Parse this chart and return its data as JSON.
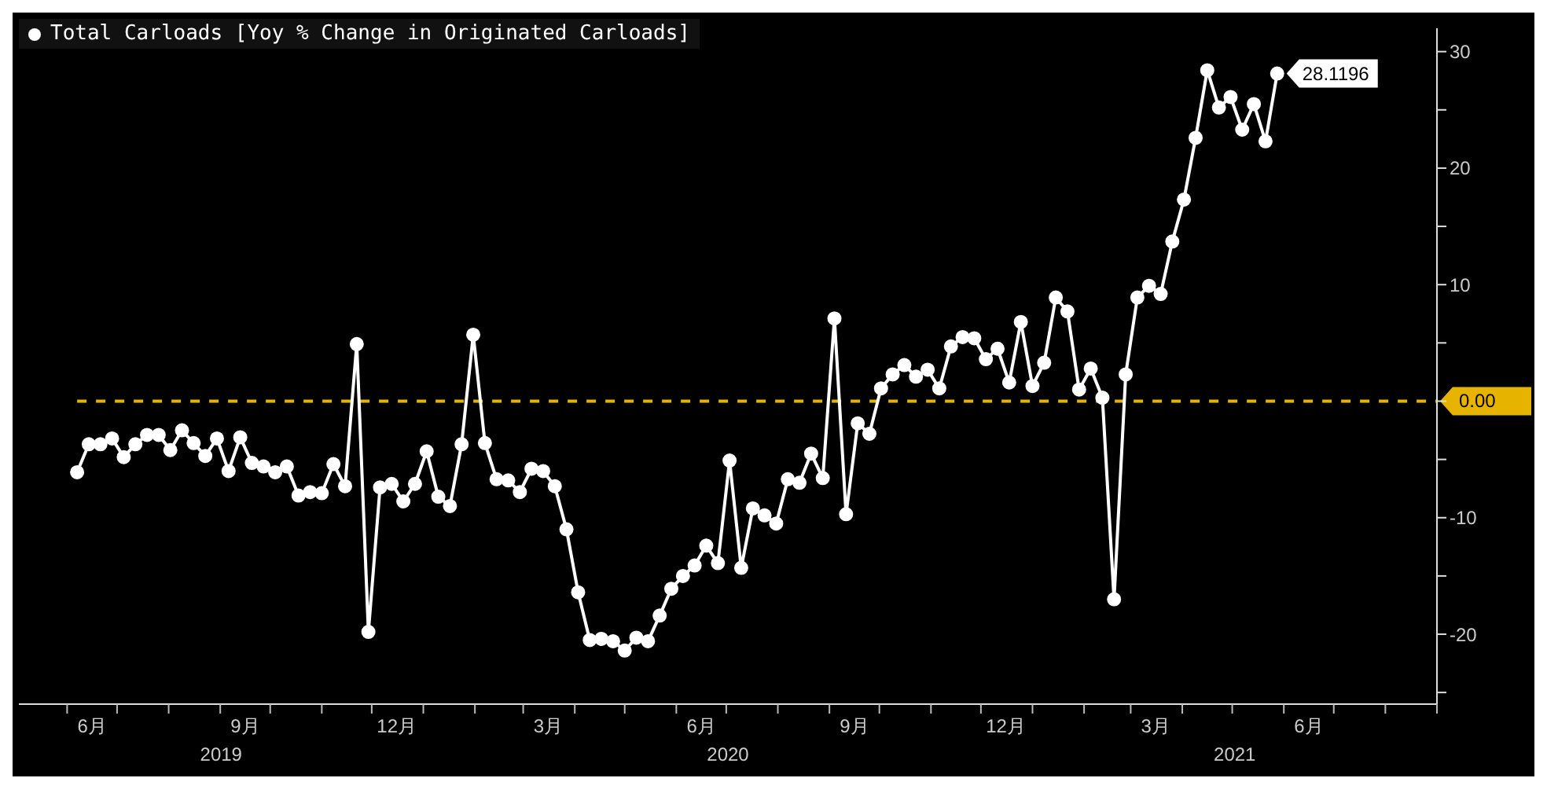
{
  "chart_data": {
    "type": "line",
    "legend": "top left",
    "marker": "circle",
    "line_style": "solid",
    "xlim": [
      "2019-05-03",
      "2021-09-01"
    ],
    "xticks": [
      {
        "value": "2019-06-01",
        "label": null
      },
      {
        "value": "2019-06-16",
        "label": "6月"
      },
      {
        "value": "2019-07-01",
        "label": null
      },
      {
        "value": "2019-08-01",
        "label": null
      },
      {
        "value": "2019-09-01",
        "label": null
      },
      {
        "value": "2019-09-16",
        "label": "9月"
      },
      {
        "value": "2019-10-01",
        "label": null
      },
      {
        "value": "2019-11-01",
        "label": null
      },
      {
        "value": "2019-12-01",
        "label": null
      },
      {
        "value": "2019-12-16",
        "label": "12月"
      },
      {
        "value": "2020-01-01",
        "label": null
      },
      {
        "value": "2020-02-01",
        "label": null
      },
      {
        "value": "2020-03-01",
        "label": null
      },
      {
        "value": "2020-03-16",
        "label": "3月"
      },
      {
        "value": "2020-04-01",
        "label": null
      },
      {
        "value": "2020-05-01",
        "label": null
      },
      {
        "value": "2020-06-01",
        "label": null
      },
      {
        "value": "2020-06-16",
        "label": "6月"
      },
      {
        "value": "2020-07-01",
        "label": null
      },
      {
        "value": "2020-08-01",
        "label": null
      },
      {
        "value": "2020-09-01",
        "label": null
      },
      {
        "value": "2020-09-16",
        "label": "9月"
      },
      {
        "value": "2020-10-01",
        "label": null
      },
      {
        "value": "2020-11-01",
        "label": null
      },
      {
        "value": "2020-12-01",
        "label": null
      },
      {
        "value": "2020-12-16",
        "label": "12月"
      },
      {
        "value": "2021-01-01",
        "label": null
      },
      {
        "value": "2021-02-01",
        "label": null
      },
      {
        "value": "2021-03-01",
        "label": null
      },
      {
        "value": "2021-03-16",
        "label": "3月"
      },
      {
        "value": "2021-04-01",
        "label": null
      },
      {
        "value": "2021-05-01",
        "label": null
      },
      {
        "value": "2021-06-01",
        "label": null
      },
      {
        "value": "2021-06-16",
        "label": "6月"
      },
      {
        "value": "2021-07-01",
        "label": null
      },
      {
        "value": "2021-08-01",
        "label": null
      },
      {
        "value": "2021-09-01",
        "label": null
      }
    ],
    "ylim": [
      -26,
      32
    ],
    "yticks": [
      {
        "value": -25,
        "label": null
      },
      -20,
      {
        "value": -15,
        "label": null
      },
      -10,
      {
        "value": -5,
        "label": null
      },
      {
        "value": 0,
        "label": null
      },
      {
        "value": 5,
        "label": null
      },
      10,
      {
        "value": 15,
        "label": null
      },
      20,
      {
        "value": 25,
        "label": null
      },
      30
    ],
    "ref_lines": [
      {
        "axis": "y",
        "value": 0,
        "label": "0.00",
        "color": "#e6b400",
        "line_style": "dashed"
      }
    ],
    "annotations": [
      "2019",
      "2020",
      "2021"
    ],
    "series": [
      {
        "name": "Total Carloads [Yoy % Change in Originated Carloads]",
        "color": "#ffffff",
        "x": [
          "2019-06-07",
          "2019-06-14",
          "2019-06-21",
          "2019-06-28",
          "2019-07-05",
          "2019-07-12",
          "2019-07-19",
          "2019-07-26",
          "2019-08-02",
          "2019-08-09",
          "2019-08-16",
          "2019-08-23",
          "2019-08-30",
          "2019-09-06",
          "2019-09-13",
          "2019-09-20",
          "2019-09-27",
          "2019-10-04",
          "2019-10-11",
          "2019-10-18",
          "2019-10-25",
          "2019-11-01",
          "2019-11-08",
          "2019-11-15",
          "2019-11-22",
          "2019-11-29",
          "2019-12-06",
          "2019-12-13",
          "2019-12-20",
          "2019-12-27",
          "2020-01-03",
          "2020-01-10",
          "2020-01-17",
          "2020-01-24",
          "2020-01-31",
          "2020-02-07",
          "2020-02-14",
          "2020-02-21",
          "2020-02-28",
          "2020-03-06",
          "2020-03-13",
          "2020-03-20",
          "2020-03-27",
          "2020-04-03",
          "2020-04-10",
          "2020-04-17",
          "2020-04-24",
          "2020-05-01",
          "2020-05-08",
          "2020-05-15",
          "2020-05-22",
          "2020-05-29",
          "2020-06-05",
          "2020-06-12",
          "2020-06-19",
          "2020-06-26",
          "2020-07-03",
          "2020-07-10",
          "2020-07-17",
          "2020-07-24",
          "2020-07-31",
          "2020-08-07",
          "2020-08-14",
          "2020-08-21",
          "2020-08-28",
          "2020-09-04",
          "2020-09-11",
          "2020-09-18",
          "2020-09-25",
          "2020-10-02",
          "2020-10-09",
          "2020-10-16",
          "2020-10-23",
          "2020-10-30",
          "2020-11-06",
          "2020-11-13",
          "2020-11-20",
          "2020-11-27",
          "2020-12-04",
          "2020-12-11",
          "2020-12-18",
          "2020-12-25",
          "2021-01-01",
          "2021-01-08",
          "2021-01-15",
          "2021-01-22",
          "2021-01-29",
          "2021-02-05",
          "2021-02-12",
          "2021-02-19",
          "2021-02-26",
          "2021-03-05",
          "2021-03-12",
          "2021-03-19",
          "2021-03-26",
          "2021-04-02",
          "2021-04-09",
          "2021-04-16",
          "2021-04-23",
          "2021-04-30",
          "2021-05-07",
          "2021-05-14",
          "2021-05-21",
          "2021-05-28"
        ],
        "values": [
          -6.1,
          -3.7,
          -3.7,
          -3.2,
          -4.8,
          -3.7,
          -2.9,
          -2.9,
          -4.2,
          -2.5,
          -3.6,
          -4.7,
          -3.2,
          -6.0,
          -3.1,
          -5.3,
          -5.6,
          -6.1,
          -5.6,
          -8.1,
          -7.8,
          -7.9,
          -5.4,
          -7.3,
          4.9,
          -19.8,
          -7.4,
          -7.1,
          -8.6,
          -7.1,
          -4.3,
          -8.2,
          -9.0,
          -3.7,
          5.7,
          -3.6,
          -6.7,
          -6.8,
          -7.8,
          -5.8,
          -6.0,
          -7.3,
          -11.0,
          -16.4,
          -20.5,
          -20.4,
          -20.6,
          -21.4,
          -20.3,
          -20.6,
          -18.4,
          -16.1,
          -15.0,
          -14.1,
          -12.4,
          -13.9,
          -5.1,
          -14.3,
          -9.2,
          -9.8,
          -10.5,
          -6.7,
          -7.0,
          -4.5,
          -6.6,
          7.1,
          -9.7,
          -1.9,
          -2.8,
          1.1,
          2.3,
          3.1,
          2.1,
          2.7,
          1.1,
          4.7,
          5.5,
          5.4,
          3.6,
          4.5,
          1.6,
          6.8,
          1.3,
          3.3,
          8.9,
          7.7,
          1.0,
          2.8,
          0.3,
          -17.0,
          2.3,
          8.9,
          9.9,
          9.2,
          13.7,
          17.3,
          22.6,
          28.4,
          25.2,
          26.1,
          23.3,
          25.5,
          22.3,
          28.1196
        ],
        "value_labels": [
          null,
          null,
          null,
          null,
          null,
          null,
          null,
          null,
          null,
          null,
          null,
          null,
          null,
          null,
          null,
          null,
          null,
          null,
          null,
          null,
          null,
          null,
          null,
          null,
          null,
          null,
          null,
          null,
          null,
          null,
          null,
          null,
          null,
          null,
          null,
          null,
          null,
          null,
          null,
          null,
          null,
          null,
          null,
          null,
          null,
          null,
          null,
          null,
          null,
          null,
          null,
          null,
          null,
          null,
          null,
          null,
          null,
          null,
          null,
          null,
          null,
          null,
          null,
          null,
          null,
          null,
          null,
          null,
          null,
          null,
          null,
          null,
          null,
          null,
          null,
          null,
          null,
          null,
          null,
          null,
          null,
          null,
          null,
          null,
          null,
          null,
          null,
          null,
          null,
          null,
          null,
          null,
          null,
          null,
          null,
          null,
          null,
          null,
          null,
          null,
          null,
          null,
          null,
          "28.1196"
        ]
      }
    ]
  }
}
